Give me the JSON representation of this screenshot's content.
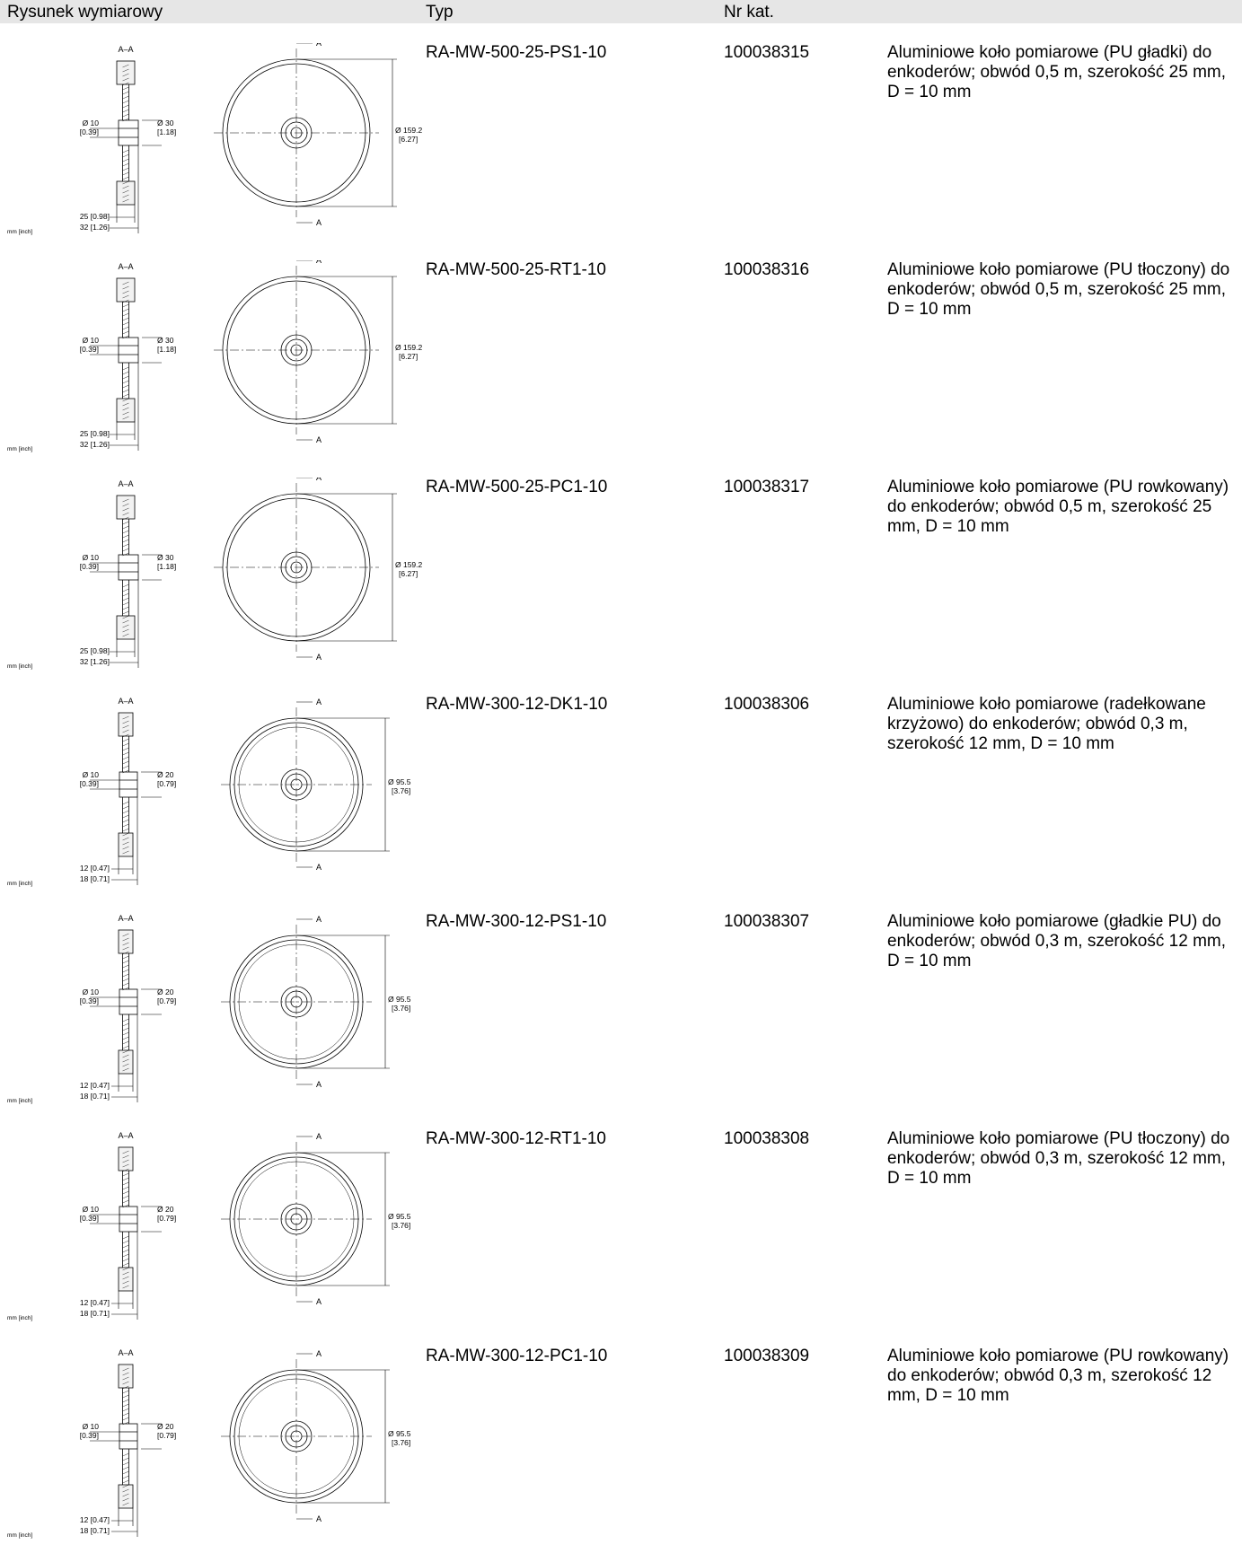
{
  "header": {
    "drawing": "Rysunek wymiarowy",
    "type": "Typ",
    "catalog": "Nr kat."
  },
  "labels": {
    "section": "A–A",
    "cut_mark": "A",
    "units": "mm [inch]"
  },
  "rows": [
    {
      "type": "RA-MW-500-25-PS1-10",
      "nr": "100038315",
      "desc": "Aluminiowe koło pomiarowe (PU gładki) do enkoderów; obwód 0,5 m, szerokość 25 mm, D = 10 mm",
      "bore": "Ø 10",
      "bore_in": "[0.39]",
      "hub": "Ø 30",
      "hub_in": "[1.18]",
      "dia": "Ø 159.2",
      "dia_in": "[6.27]",
      "w1": "25 [0.98]",
      "w2": "32 [1.26]"
    },
    {
      "type": "RA-MW-500-25-RT1-10",
      "nr": "100038316",
      "desc": "Aluminiowe koło pomiarowe (PU tłoczony) do enkoderów; obwód 0,5 m, szerokość 25 mm, D = 10 mm",
      "bore": "Ø 10",
      "bore_in": "[0.39]",
      "hub": "Ø 30",
      "hub_in": "[1.18]",
      "dia": "Ø 159.2",
      "dia_in": "[6.27]",
      "w1": "25 [0.98]",
      "w2": "32 [1.26]"
    },
    {
      "type": "RA-MW-500-25-PC1-10",
      "nr": "100038317",
      "desc": "Aluminiowe koło pomiarowe (PU rowkowany) do enkoderów; obwód 0,5 m, szerokość 25 mm, D = 10 mm",
      "bore": "Ø 10",
      "bore_in": "[0.39]",
      "hub": "Ø 30",
      "hub_in": "[1.18]",
      "dia": "Ø 159.2",
      "dia_in": "[6.27]",
      "w1": "25 [0.98]",
      "w2": "32 [1.26]"
    },
    {
      "type": "RA-MW-300-12-DK1-10",
      "nr": "100038306",
      "desc": "Aluminiowe koło pomiarowe (radełkowane krzyżowo) do enkoderów; obwód 0,3 m, szerokość 12 mm, D = 10 mm",
      "bore": "Ø 10",
      "bore_in": "[0.39]",
      "hub": "Ø 20",
      "hub_in": "[0.79]",
      "dia": "Ø 95.5",
      "dia_in": "[3.76]",
      "w1": "12 [0.47]",
      "w2": "18 [0.71]"
    },
    {
      "type": "RA-MW-300-12-PS1-10",
      "nr": "100038307",
      "desc": "Aluminiowe koło pomiarowe (gładkie PU) do enkoderów; obwód 0,3 m, szerokość 12 mm, D = 10 mm",
      "bore": "Ø 10",
      "bore_in": "[0.39]",
      "hub": "Ø 20",
      "hub_in": "[0.79]",
      "dia": "Ø 95.5",
      "dia_in": "[3.76]",
      "w1": "12 [0.47]",
      "w2": "18 [0.71]"
    },
    {
      "type": "RA-MW-300-12-RT1-10",
      "nr": "100038308",
      "desc": "Aluminiowe koło pomiarowe (PU tłoczony) do enkoderów; obwód 0,3 m, szerokość 12 mm, D = 10 mm",
      "bore": "Ø 10",
      "bore_in": "[0.39]",
      "hub": "Ø 20",
      "hub_in": "[0.79]",
      "dia": "Ø 95.5",
      "dia_in": "[3.76]",
      "w1": "12 [0.47]",
      "w2": "18 [0.71]"
    },
    {
      "type": "RA-MW-300-12-PC1-10",
      "nr": "100038309",
      "desc": "Aluminiowe koło pomiarowe (PU rowkowany) do enkoderów; obwód 0,3 m, szerokość 12 mm, D = 10 mm",
      "bore": "Ø 10",
      "bore_in": "[0.39]",
      "hub": "Ø 20",
      "hub_in": "[0.79]",
      "dia": "Ø 95.5",
      "dia_in": "[3.76]",
      "w1": "12 [0.47]",
      "w2": "18 [0.71]"
    }
  ]
}
